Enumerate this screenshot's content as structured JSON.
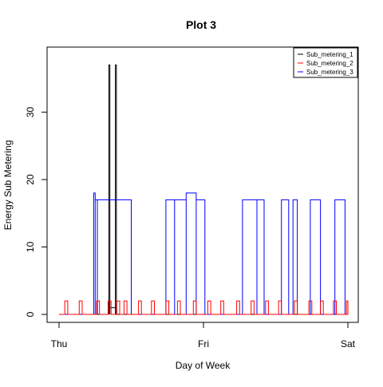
{
  "chart_data": {
    "type": "line",
    "title": "Plot 3",
    "xlabel": "Day of Week",
    "ylabel": "Energy Sub Metering",
    "x_ticks": [
      {
        "label": "Thu",
        "day": 0
      },
      {
        "label": "Fri",
        "day": 1
      },
      {
        "label": "Sat",
        "day": 2
      }
    ],
    "xlim": [
      0,
      2
    ],
    "y_ticks": [
      0,
      10,
      20,
      30
    ],
    "ylim": [
      0,
      38
    ],
    "x_unit": "days from start of Thursday",
    "legend": {
      "position": "top-right",
      "entries": [
        "Sub_metering_1",
        "Sub_metering_2",
        "Sub_metering_3"
      ]
    },
    "series": [
      {
        "name": "Sub_metering_1",
        "color": "#000000",
        "baseline": 0,
        "segments": [
          {
            "start": 0.34,
            "end": 0.345,
            "level": 1
          },
          {
            "start": 0.345,
            "end": 0.352,
            "level": 37
          },
          {
            "start": 0.352,
            "end": 0.39,
            "level": 1
          },
          {
            "start": 0.39,
            "end": 0.397,
            "level": 37
          },
          {
            "start": 0.397,
            "end": 0.4,
            "level": 1
          }
        ]
      },
      {
        "name": "Sub_metering_2",
        "color": "#ff0000",
        "baseline": 0,
        "segments": [
          {
            "start": 0.04,
            "end": 0.06,
            "level": 2
          },
          {
            "start": 0.14,
            "end": 0.16,
            "level": 2
          },
          {
            "start": 0.26,
            "end": 0.28,
            "level": 2
          },
          {
            "start": 0.34,
            "end": 0.36,
            "level": 2
          },
          {
            "start": 0.4,
            "end": 0.42,
            "level": 2
          },
          {
            "start": 0.45,
            "end": 0.47,
            "level": 2
          },
          {
            "start": 0.55,
            "end": 0.57,
            "level": 2
          },
          {
            "start": 0.64,
            "end": 0.66,
            "level": 2
          },
          {
            "start": 0.74,
            "end": 0.76,
            "level": 2
          },
          {
            "start": 0.82,
            "end": 0.84,
            "level": 2
          },
          {
            "start": 0.93,
            "end": 0.95,
            "level": 2
          },
          {
            "start": 1.03,
            "end": 1.05,
            "level": 2
          },
          {
            "start": 1.12,
            "end": 1.14,
            "level": 2
          },
          {
            "start": 1.23,
            "end": 1.25,
            "level": 2
          },
          {
            "start": 1.33,
            "end": 1.35,
            "level": 2
          },
          {
            "start": 1.43,
            "end": 1.45,
            "level": 2
          },
          {
            "start": 1.52,
            "end": 1.54,
            "level": 2
          },
          {
            "start": 1.63,
            "end": 1.65,
            "level": 2
          },
          {
            "start": 1.73,
            "end": 1.75,
            "level": 2
          },
          {
            "start": 1.81,
            "end": 1.83,
            "level": 2
          },
          {
            "start": 1.9,
            "end": 1.92,
            "level": 2
          },
          {
            "start": 1.99,
            "end": 2.0,
            "level": 2
          }
        ]
      },
      {
        "name": "Sub_metering_3",
        "color": "#0000ff",
        "baseline": 0,
        "segments": [
          {
            "start": 0.24,
            "end": 0.25,
            "level": 18
          },
          {
            "start": 0.25,
            "end": 0.265,
            "level": 17
          },
          {
            "start": 0.265,
            "end": 0.5,
            "level": 17
          },
          {
            "start": 0.74,
            "end": 0.8,
            "level": 17
          },
          {
            "start": 0.8,
            "end": 0.88,
            "level": 17
          },
          {
            "start": 0.88,
            "end": 0.95,
            "level": 18
          },
          {
            "start": 0.95,
            "end": 1.01,
            "level": 17
          },
          {
            "start": 1.27,
            "end": 1.37,
            "level": 17
          },
          {
            "start": 1.37,
            "end": 1.42,
            "level": 17
          },
          {
            "start": 1.54,
            "end": 1.59,
            "level": 17
          },
          {
            "start": 1.62,
            "end": 1.65,
            "level": 17
          },
          {
            "start": 1.74,
            "end": 1.81,
            "level": 17
          },
          {
            "start": 1.91,
            "end": 1.98,
            "level": 17
          }
        ]
      }
    ]
  }
}
